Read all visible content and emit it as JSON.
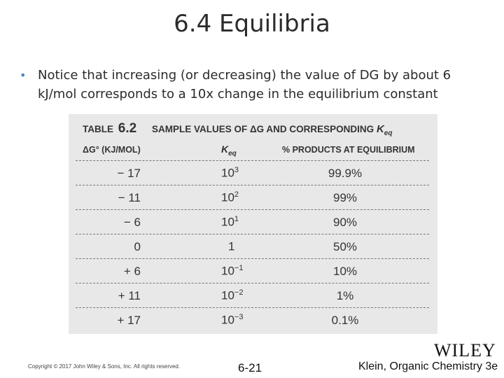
{
  "slide": {
    "title": "6.4 Equilibria",
    "bullet": "Notice that increasing (or decreasing) the value of DG by about 6 kJ/mol corresponds to a 10x change in the equilibrium constant"
  },
  "table": {
    "label": "TABLE",
    "number": "6.2",
    "caption": "SAMPLE VALUES OF ΔG AND CORRESPONDING",
    "caption_k": "K",
    "caption_k_sub": "eq",
    "headers": {
      "dg": "ΔG° (KJ/MOL)",
      "k": "K",
      "k_sub": "eq",
      "pct": "% PRODUCTS AT EQUILIBRIUM"
    },
    "rows": [
      {
        "dg": "− 17",
        "k_base": "10",
        "k_exp": "3",
        "pct": "99.9%"
      },
      {
        "dg": "− 11",
        "k_base": "10",
        "k_exp": "2",
        "pct": "99%"
      },
      {
        "dg": "− 6",
        "k_base": "10",
        "k_exp": "1",
        "pct": "90%"
      },
      {
        "dg": "0",
        "k_base": "1",
        "k_exp": "",
        "pct": "50%"
      },
      {
        "dg": "+ 6",
        "k_base": "10",
        "k_exp": "−1",
        "pct": "10%"
      },
      {
        "dg": "+ 11",
        "k_base": "10",
        "k_exp": "−2",
        "pct": "1%"
      },
      {
        "dg": "+ 17",
        "k_base": "10",
        "k_exp": "−3",
        "pct": "0.1%"
      }
    ]
  },
  "footer": {
    "copyright": "Copyright © 2017 John Wiley & Sons, Inc. All rights reserved.",
    "page": "6-21",
    "book": "Klein, Organic Chemistry 3e",
    "logo": "WILEY"
  }
}
